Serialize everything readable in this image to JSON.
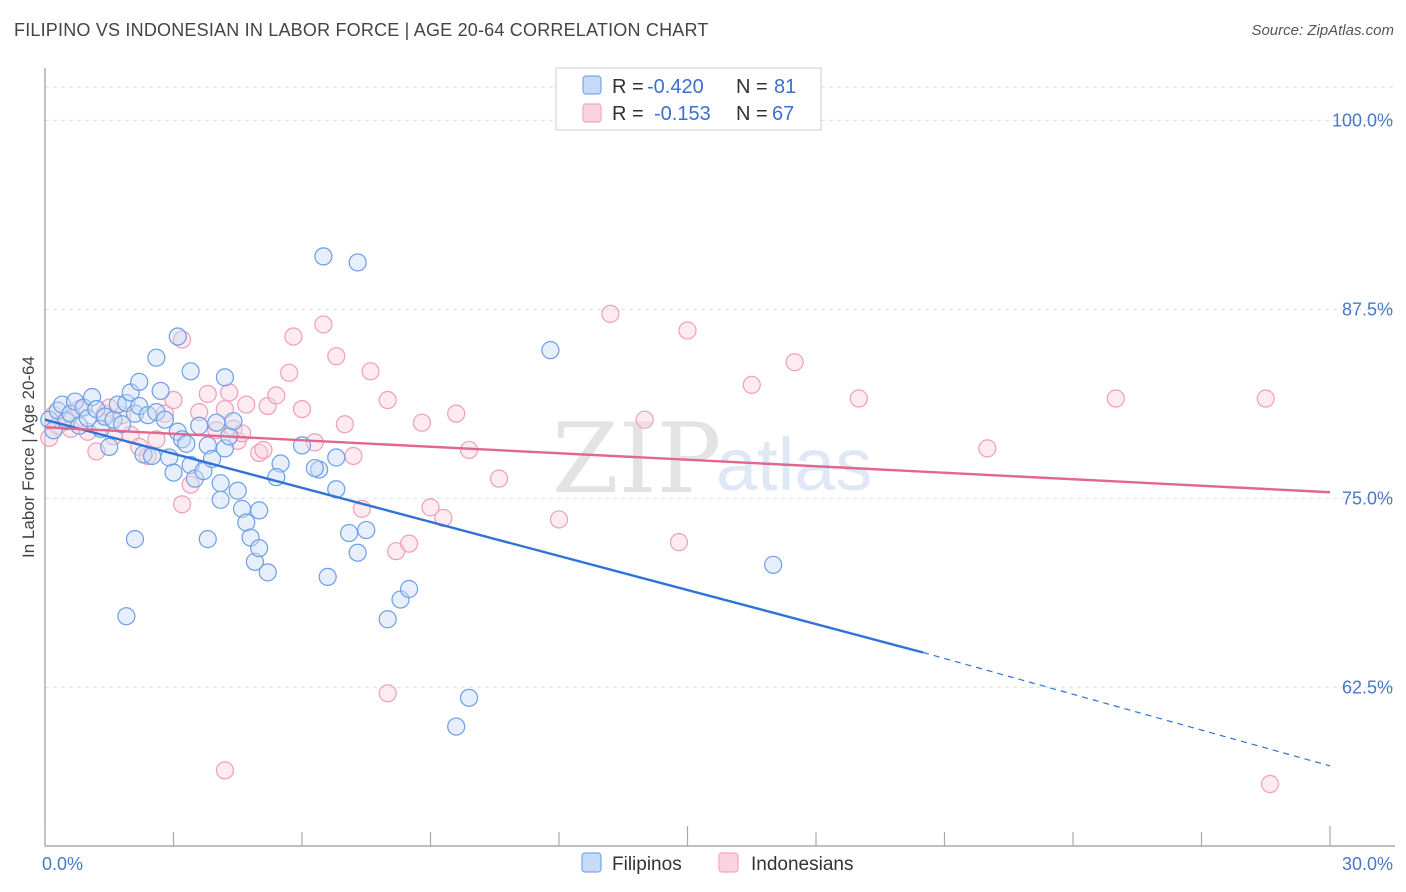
{
  "title": "FILIPINO VS INDONESIAN IN LABOR FORCE | AGE 20-64 CORRELATION CHART",
  "source": "Source: ZipAtlas.com",
  "watermark": {
    "zip": "ZIP",
    "atlas": "atlas"
  },
  "legend": {
    "rows": [
      {
        "r_label": "R =",
        "r_value": "-0.420",
        "n_label": "N =",
        "n_value": "81",
        "color": "#7aa6e8"
      },
      {
        "r_label": "R =",
        "r_value": "-0.153",
        "n_label": "N =",
        "n_value": "67",
        "color": "#f2a6bd"
      }
    ]
  },
  "bottom_legend": [
    {
      "label": "Filipinos",
      "color": "#7aa6e8"
    },
    {
      "label": "Indonesians",
      "color": "#f2a6bd"
    }
  ],
  "chart_data": {
    "type": "scatter",
    "title": "FILIPINO VS INDONESIAN IN LABOR FORCE | AGE 20-64 CORRELATION CHART",
    "xlabel": "",
    "ylabel": "In Labor Force | Age 20-64",
    "xlim": [
      0,
      30
    ],
    "ylim": [
      52,
      103
    ],
    "x_tick_labels": [
      "0.0%",
      "30.0%"
    ],
    "y_ticks": [
      62.5,
      75.0,
      87.5,
      100.0
    ],
    "y_tick_labels": [
      "62.5%",
      "75.0%",
      "87.5%",
      "100.0%"
    ],
    "grid": true,
    "legend_position": "top-center",
    "series": [
      {
        "name": "Filipinos",
        "color": "#6d9ee6",
        "r": -0.42,
        "n": 81,
        "trend": {
          "x0": 0,
          "y0": 80.2,
          "x1": 20.5,
          "y1": 64.8,
          "dash_to_x": 30,
          "dash_to_y": 57.3
        },
        "points": [
          [
            0.1,
            80.2
          ],
          [
            0.2,
            79.5
          ],
          [
            0.3,
            80.8
          ],
          [
            0.4,
            81.2
          ],
          [
            0.5,
            80.1
          ],
          [
            0.6,
            80.6
          ],
          [
            0.7,
            81.4
          ],
          [
            0.8,
            79.8
          ],
          [
            0.9,
            81.0
          ],
          [
            1.0,
            80.3
          ],
          [
            1.1,
            81.7
          ],
          [
            1.2,
            80.9
          ],
          [
            1.3,
            79.6
          ],
          [
            1.4,
            80.4
          ],
          [
            1.5,
            78.4
          ],
          [
            1.6,
            80.2
          ],
          [
            1.7,
            81.2
          ],
          [
            1.8,
            79.9
          ],
          [
            1.9,
            81.3
          ],
          [
            2.0,
            82.0
          ],
          [
            2.1,
            80.6
          ],
          [
            2.2,
            81.1
          ],
          [
            2.3,
            77.9
          ],
          [
            2.4,
            80.5
          ],
          [
            2.5,
            77.8
          ],
          [
            2.6,
            80.7
          ],
          [
            2.7,
            82.1
          ],
          [
            2.8,
            80.2
          ],
          [
            2.9,
            77.7
          ],
          [
            3.0,
            76.7
          ],
          [
            3.1,
            79.4
          ],
          [
            3.2,
            78.9
          ],
          [
            3.3,
            78.6
          ],
          [
            3.4,
            77.2
          ],
          [
            3.5,
            76.3
          ],
          [
            3.6,
            79.8
          ],
          [
            3.7,
            76.8
          ],
          [
            3.8,
            78.5
          ],
          [
            3.9,
            77.6
          ],
          [
            4.0,
            80.0
          ],
          [
            4.1,
            76.0
          ],
          [
            4.2,
            78.3
          ],
          [
            4.3,
            79.1
          ],
          [
            4.4,
            80.1
          ],
          [
            4.5,
            75.5
          ],
          [
            4.6,
            74.3
          ],
          [
            4.7,
            73.4
          ],
          [
            4.8,
            72.4
          ],
          [
            4.9,
            70.8
          ],
          [
            5.0,
            71.7
          ],
          [
            5.2,
            70.1
          ],
          [
            1.9,
            67.2
          ],
          [
            2.1,
            72.3
          ],
          [
            3.8,
            72.3
          ],
          [
            4.1,
            74.9
          ],
          [
            5.5,
            77.3
          ],
          [
            5.4,
            76.4
          ],
          [
            6.0,
            78.5
          ],
          [
            6.4,
            76.9
          ],
          [
            6.8,
            77.7
          ],
          [
            2.6,
            84.3
          ],
          [
            3.4,
            83.4
          ],
          [
            2.2,
            82.7
          ],
          [
            3.1,
            85.7
          ],
          [
            4.2,
            83.0
          ],
          [
            6.5,
            91.0
          ],
          [
            7.3,
            90.6
          ],
          [
            11.8,
            84.8
          ],
          [
            17.0,
            70.6
          ],
          [
            5.0,
            74.2
          ],
          [
            6.3,
            77.0
          ],
          [
            6.8,
            75.6
          ],
          [
            7.1,
            72.7
          ],
          [
            7.5,
            72.9
          ],
          [
            6.6,
            69.8
          ],
          [
            8.3,
            68.3
          ],
          [
            8.5,
            69.0
          ],
          [
            7.3,
            71.4
          ],
          [
            8.0,
            67.0
          ],
          [
            9.9,
            61.8
          ],
          [
            9.6,
            59.9
          ]
        ]
      },
      {
        "name": "Indonesians",
        "color": "#f2a6bd",
        "r": -0.153,
        "n": 67,
        "trend": {
          "x0": 0,
          "y0": 79.7,
          "x1": 30,
          "y1": 75.4
        },
        "points": [
          [
            0.1,
            79.0
          ],
          [
            0.2,
            80.5
          ],
          [
            0.3,
            79.8
          ],
          [
            0.5,
            80.2
          ],
          [
            0.6,
            79.6
          ],
          [
            0.8,
            80.9
          ],
          [
            1.0,
            79.4
          ],
          [
            1.2,
            78.1
          ],
          [
            1.4,
            80.6
          ],
          [
            1.5,
            81.0
          ],
          [
            1.6,
            79.1
          ],
          [
            1.8,
            80.5
          ],
          [
            2.0,
            79.2
          ],
          [
            2.2,
            78.4
          ],
          [
            2.4,
            77.8
          ],
          [
            2.6,
            78.9
          ],
          [
            2.8,
            80.6
          ],
          [
            3.0,
            81.5
          ],
          [
            3.2,
            74.6
          ],
          [
            3.4,
            75.9
          ],
          [
            3.6,
            80.7
          ],
          [
            3.8,
            81.9
          ],
          [
            4.0,
            79.5
          ],
          [
            4.2,
            80.9
          ],
          [
            4.3,
            82.0
          ],
          [
            4.4,
            79.6
          ],
          [
            4.5,
            78.8
          ],
          [
            4.6,
            79.3
          ],
          [
            4.7,
            81.2
          ],
          [
            5.0,
            78.0
          ],
          [
            5.2,
            81.1
          ],
          [
            5.4,
            81.8
          ],
          [
            5.7,
            83.3
          ],
          [
            5.8,
            85.7
          ],
          [
            6.0,
            80.9
          ],
          [
            6.3,
            78.7
          ],
          [
            6.5,
            86.5
          ],
          [
            6.8,
            84.4
          ],
          [
            7.0,
            79.9
          ],
          [
            7.2,
            77.8
          ],
          [
            7.4,
            74.3
          ],
          [
            7.6,
            83.4
          ],
          [
            8.0,
            81.5
          ],
          [
            8.2,
            71.5
          ],
          [
            8.5,
            72.0
          ],
          [
            8.8,
            80.0
          ],
          [
            9.0,
            74.4
          ],
          [
            9.3,
            73.7
          ],
          [
            9.6,
            80.6
          ],
          [
            9.9,
            78.2
          ],
          [
            10.6,
            76.3
          ],
          [
            12.0,
            73.6
          ],
          [
            13.2,
            87.2
          ],
          [
            14.0,
            80.2
          ],
          [
            14.8,
            72.1
          ],
          [
            15.0,
            86.1
          ],
          [
            16.5,
            82.5
          ],
          [
            17.5,
            84.0
          ],
          [
            19.0,
            81.6
          ],
          [
            22.0,
            78.3
          ],
          [
            25.0,
            81.6
          ],
          [
            28.5,
            81.6
          ],
          [
            28.6,
            56.1
          ],
          [
            8.0,
            62.1
          ],
          [
            4.2,
            57.0
          ],
          [
            3.2,
            85.5
          ],
          [
            5.1,
            78.2
          ]
        ]
      }
    ]
  }
}
